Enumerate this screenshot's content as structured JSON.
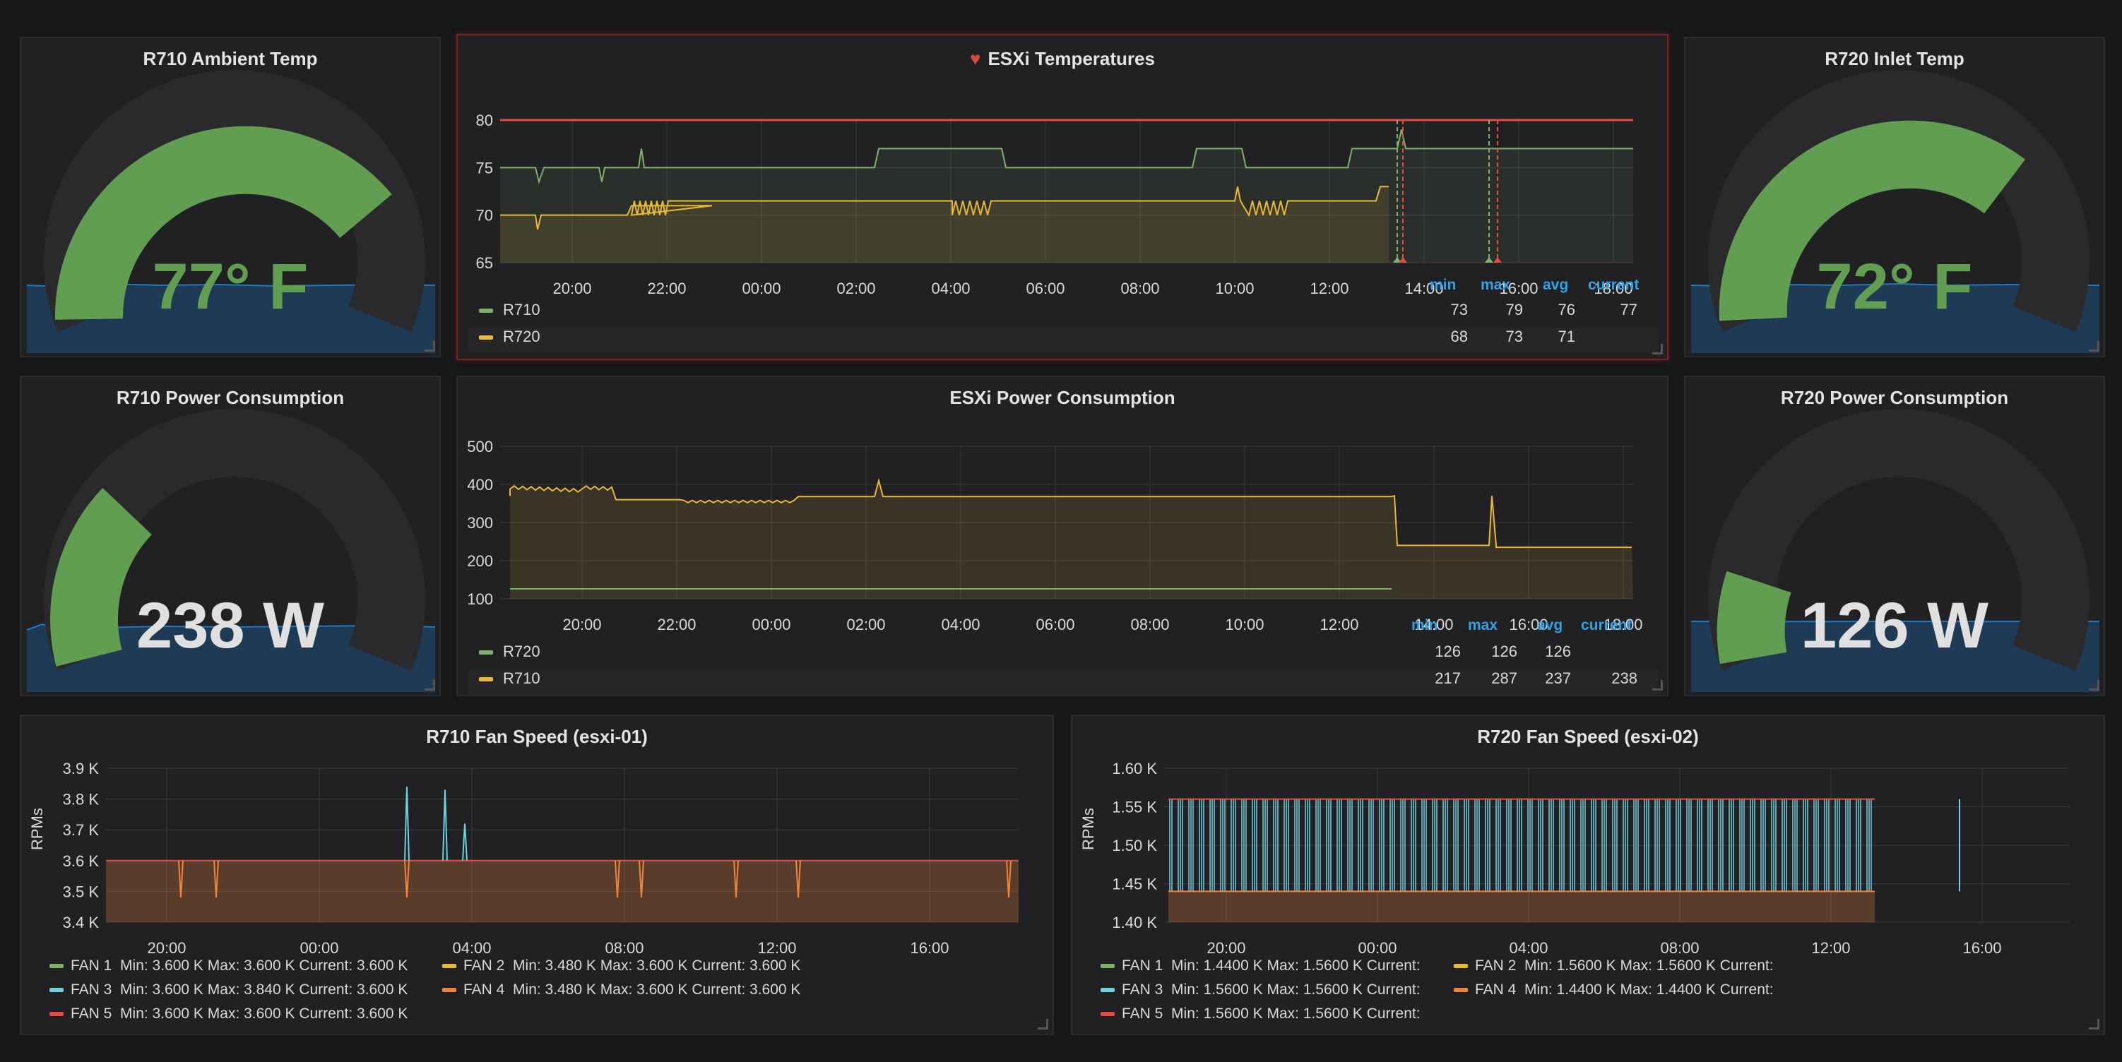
{
  "gauges": [
    {
      "title": "R710 Ambient Temp",
      "value": "77° F",
      "fraction": 0.77,
      "color": "#629e51"
    },
    {
      "title": "R720 Inlet Temp",
      "value": "72° F",
      "fraction": 0.72,
      "color": "#629e51"
    },
    {
      "title": "R710 Power Consumption",
      "value": "238 W",
      "fraction": 0.238,
      "color": "#d8d9da"
    },
    {
      "title": "R720 Power Consumption",
      "value": "126 W",
      "fraction": 0.126,
      "color": "#d8d9da"
    }
  ],
  "temps": {
    "title": "ESXi Temperatures",
    "alert_icon": "heart-broken-icon",
    "y_ticks": [
      "80",
      "75",
      "70",
      "65"
    ],
    "x_ticks": [
      "20:00",
      "22:00",
      "00:00",
      "02:00",
      "04:00",
      "06:00",
      "08:00",
      "10:00",
      "12:00",
      "14:00",
      "16:00",
      "18:00"
    ],
    "legend_headers": {
      "min": "min",
      "max": "max",
      "avg": "avg",
      "current": "current"
    },
    "legend": [
      {
        "name": "R710",
        "color": "#7eb26d",
        "min": "73",
        "max": "79",
        "avg": "76",
        "current": "77"
      },
      {
        "name": "R720",
        "color": "#eab839",
        "min": "68",
        "max": "73",
        "avg": "71",
        "current": ""
      }
    ]
  },
  "power": {
    "title": "ESXi Power Consumption",
    "y_ticks": [
      "500",
      "400",
      "300",
      "200",
      "100"
    ],
    "x_ticks": [
      "20:00",
      "22:00",
      "00:00",
      "02:00",
      "04:00",
      "06:00",
      "08:00",
      "10:00",
      "12:00",
      "14:00",
      "16:00",
      "18:00"
    ],
    "legend_headers": {
      "min": "min",
      "max": "max",
      "avg": "avg",
      "current": "current"
    },
    "legend": [
      {
        "name": "R720",
        "color": "#7eb26d",
        "min": "126",
        "max": "126",
        "avg": "126",
        "current": ""
      },
      {
        "name": "R710",
        "color": "#eab839",
        "min": "217",
        "max": "287",
        "avg": "237",
        "current": "238"
      }
    ]
  },
  "fan1": {
    "title": "R710 Fan Speed (esxi-01)",
    "ylabel": "RPMs",
    "y_ticks": [
      "3.9 K",
      "3.8 K",
      "3.7 K",
      "3.6 K",
      "3.5 K",
      "3.4 K"
    ],
    "x_ticks": [
      "20:00",
      "00:00",
      "04:00",
      "08:00",
      "12:00",
      "16:00"
    ],
    "legend": [
      {
        "name": "FAN 1",
        "color": "#7eb26d",
        "text": "Min: 3.600 K  Max: 3.600 K  Current: 3.600 K"
      },
      {
        "name": "FAN 2",
        "color": "#eab839",
        "text": "Min: 3.480 K  Max: 3.600 K  Current: 3.600 K"
      },
      {
        "name": "FAN 3",
        "color": "#6ed0e0",
        "text": "Min: 3.600 K  Max: 3.840 K  Current: 3.600 K"
      },
      {
        "name": "FAN 4",
        "color": "#ef843c",
        "text": "Min: 3.480 K  Max: 3.600 K  Current: 3.600 K"
      },
      {
        "name": "FAN 5",
        "color": "#e24d42",
        "text": "Min: 3.600 K  Max: 3.600 K  Current: 3.600 K"
      }
    ]
  },
  "fan2": {
    "title": "R720 Fan Speed (esxi-02)",
    "ylabel": "RPMs",
    "y_ticks": [
      "1.60 K",
      "1.55 K",
      "1.50 K",
      "1.45 K",
      "1.40 K"
    ],
    "x_ticks": [
      "20:00",
      "00:00",
      "04:00",
      "08:00",
      "12:00",
      "16:00"
    ],
    "legend": [
      {
        "name": "FAN 1",
        "color": "#7eb26d",
        "text": "Min: 1.4400 K  Max: 1.5600 K  Current:"
      },
      {
        "name": "FAN 2",
        "color": "#eab839",
        "text": "Min: 1.5600 K  Max: 1.5600 K  Current:"
      },
      {
        "name": "FAN 3",
        "color": "#6ed0e0",
        "text": "Min: 1.5600 K  Max: 1.5600 K  Current:"
      },
      {
        "name": "FAN 4",
        "color": "#ef843c",
        "text": "Min: 1.4400 K  Max: 1.4400 K  Current:"
      },
      {
        "name": "FAN 5",
        "color": "#e24d42",
        "text": "Min: 1.5600 K  Max: 1.5600 K  Current:"
      }
    ]
  }
}
